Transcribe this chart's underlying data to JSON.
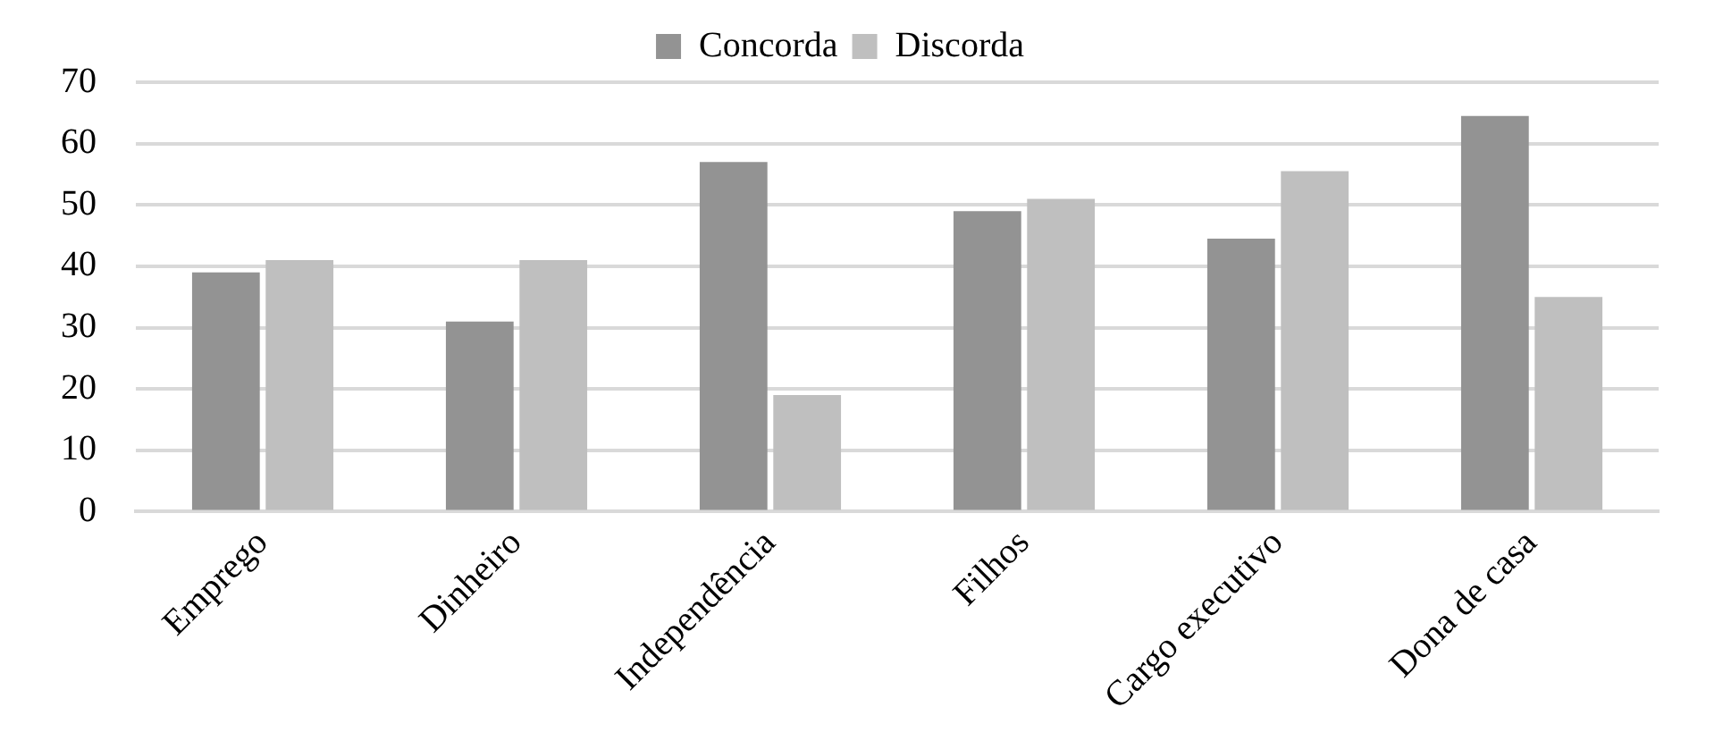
{
  "chart_data": {
    "type": "bar",
    "categories": [
      "Emprego",
      "Dinheiro",
      "Independência",
      "Filhos",
      "Cargo executivo",
      "Dona de casa"
    ],
    "series": [
      {
        "name": "Concorda",
        "color": "#939393",
        "values": [
          39,
          31,
          57,
          49,
          44.5,
          64.5
        ]
      },
      {
        "name": "Discorda",
        "color": "#bfbfbf",
        "values": [
          41,
          41,
          19,
          51,
          55.5,
          35
        ]
      }
    ],
    "ylim": [
      0,
      70
    ],
    "yticks": [
      0,
      10,
      20,
      30,
      40,
      50,
      60,
      70
    ],
    "grid": "y",
    "legend": "top"
  }
}
